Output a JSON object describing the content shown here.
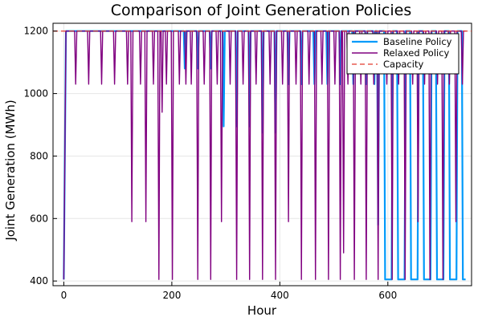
{
  "chart_data": {
    "type": "line",
    "title": "Comparison of Joint Generation Policies",
    "xlabel": "Hour",
    "ylabel": "Joint Generation (MWh)",
    "xlim": [
      -20,
      755
    ],
    "ylim": [
      385,
      1225
    ],
    "xticks": [
      0,
      200,
      400,
      600
    ],
    "yticks": [
      400,
      600,
      800,
      1000,
      1200
    ],
    "grid": true,
    "legend_position": "top-right",
    "capacity": 1200,
    "colors": {
      "baseline": "#009AFA",
      "relaxed": "#800080",
      "capacity": "#E23B2F"
    },
    "series": [
      {
        "name": "Baseline Policy",
        "points": [
          [
            0,
            405
          ],
          [
            4,
            1200
          ],
          [
            222,
            1200
          ],
          [
            224,
            1080
          ],
          [
            226,
            1200
          ],
          [
            246,
            1200
          ],
          [
            248,
            1080
          ],
          [
            250,
            1200
          ],
          [
            270,
            1200
          ],
          [
            272,
            1080
          ],
          [
            274,
            1200
          ],
          [
            294,
            1200
          ],
          [
            296,
            895
          ],
          [
            298,
            1200
          ],
          [
            318,
            1200
          ],
          [
            320,
            895
          ],
          [
            322,
            1200
          ],
          [
            342,
            1200
          ],
          [
            344,
            895
          ],
          [
            346,
            1200
          ],
          [
            366,
            1200
          ],
          [
            368,
            875
          ],
          [
            370,
            1200
          ],
          [
            390,
            1200
          ],
          [
            392,
            875
          ],
          [
            394,
            1200
          ],
          [
            414,
            1200
          ],
          [
            416,
            1030
          ],
          [
            418,
            1200
          ],
          [
            438,
            1200
          ],
          [
            440,
            1030
          ],
          [
            442,
            1200
          ],
          [
            462,
            1200
          ],
          [
            464,
            1030
          ],
          [
            466,
            1200
          ],
          [
            486,
            1200
          ],
          [
            488,
            1030
          ],
          [
            490,
            1200
          ],
          [
            510,
            1200
          ],
          [
            512,
            1030
          ],
          [
            514,
            1200
          ],
          [
            534,
            1200
          ],
          [
            536,
            1030
          ],
          [
            538,
            1200
          ],
          [
            558,
            1200
          ],
          [
            560,
            1030
          ],
          [
            562,
            1200
          ],
          [
            573,
            1200
          ],
          [
            575,
            1030
          ],
          [
            577,
            1200
          ],
          [
            580,
            1200
          ],
          [
            582,
            580
          ],
          [
            584,
            1200
          ],
          [
            593,
            1200
          ],
          [
            595,
            405
          ],
          [
            607,
            405
          ],
          [
            609,
            1200
          ],
          [
            617,
            1200
          ],
          [
            619,
            405
          ],
          [
            631,
            405
          ],
          [
            633,
            1200
          ],
          [
            641,
            1200
          ],
          [
            643,
            405
          ],
          [
            655,
            405
          ],
          [
            657,
            1200
          ],
          [
            665,
            1200
          ],
          [
            667,
            405
          ],
          [
            679,
            405
          ],
          [
            681,
            1200
          ],
          [
            689,
            1200
          ],
          [
            691,
            405
          ],
          [
            703,
            405
          ],
          [
            705,
            1200
          ],
          [
            713,
            1200
          ],
          [
            715,
            405
          ],
          [
            727,
            405
          ],
          [
            729,
            1200
          ],
          [
            737,
            1200
          ],
          [
            739,
            405
          ],
          [
            744,
            405
          ]
        ]
      },
      {
        "name": "Relaxed Policy",
        "points": [
          [
            0,
            405
          ],
          [
            4,
            1200
          ],
          [
            20,
            1200
          ],
          [
            22,
            1030
          ],
          [
            24,
            1200
          ],
          [
            44,
            1200
          ],
          [
            46,
            1030
          ],
          [
            48,
            1200
          ],
          [
            68,
            1200
          ],
          [
            70,
            1030
          ],
          [
            72,
            1200
          ],
          [
            92,
            1200
          ],
          [
            94,
            1030
          ],
          [
            96,
            1200
          ],
          [
            116,
            1200
          ],
          [
            118,
            1030
          ],
          [
            120,
            1200
          ],
          [
            124,
            1200
          ],
          [
            126,
            590
          ],
          [
            128,
            1200
          ],
          [
            140,
            1200
          ],
          [
            142,
            1030
          ],
          [
            144,
            1200
          ],
          [
            150,
            1200
          ],
          [
            152,
            590
          ],
          [
            154,
            1200
          ],
          [
            164,
            1200
          ],
          [
            166,
            1030
          ],
          [
            168,
            1200
          ],
          [
            174,
            1200
          ],
          [
            176,
            405
          ],
          [
            178,
            1200
          ],
          [
            180,
            1200
          ],
          [
            182,
            940
          ],
          [
            184,
            1200
          ],
          [
            188,
            1200
          ],
          [
            190,
            1030
          ],
          [
            192,
            1200
          ],
          [
            199,
            1200
          ],
          [
            201,
            405
          ],
          [
            203,
            1200
          ],
          [
            212,
            1200
          ],
          [
            214,
            1030
          ],
          [
            216,
            1200
          ],
          [
            224,
            1200
          ],
          [
            226,
            1030
          ],
          [
            228,
            1200
          ],
          [
            234,
            1200
          ],
          [
            236,
            1030
          ],
          [
            238,
            1200
          ],
          [
            246,
            1200
          ],
          [
            248,
            405
          ],
          [
            250,
            1200
          ],
          [
            258,
            1200
          ],
          [
            260,
            1030
          ],
          [
            262,
            1200
          ],
          [
            270,
            1200
          ],
          [
            272,
            405
          ],
          [
            274,
            1200
          ],
          [
            282,
            1200
          ],
          [
            284,
            1030
          ],
          [
            286,
            1200
          ],
          [
            290,
            1200
          ],
          [
            292,
            590
          ],
          [
            294,
            1200
          ],
          [
            306,
            1200
          ],
          [
            308,
            1030
          ],
          [
            310,
            1200
          ],
          [
            318,
            1200
          ],
          [
            320,
            405
          ],
          [
            322,
            1200
          ],
          [
            330,
            1200
          ],
          [
            332,
            1030
          ],
          [
            334,
            1200
          ],
          [
            342,
            1200
          ],
          [
            344,
            405
          ],
          [
            346,
            1200
          ],
          [
            354,
            1200
          ],
          [
            356,
            1030
          ],
          [
            358,
            1200
          ],
          [
            366,
            1200
          ],
          [
            368,
            405
          ],
          [
            370,
            1200
          ],
          [
            380,
            1200
          ],
          [
            382,
            1030
          ],
          [
            384,
            1200
          ],
          [
            390,
            1200
          ],
          [
            392,
            405
          ],
          [
            394,
            1200
          ],
          [
            403,
            1200
          ],
          [
            405,
            1030
          ],
          [
            407,
            1200
          ],
          [
            414,
            1200
          ],
          [
            416,
            590
          ],
          [
            418,
            1200
          ],
          [
            428,
            1200
          ],
          [
            430,
            1030
          ],
          [
            432,
            1200
          ],
          [
            438,
            1200
          ],
          [
            440,
            405
          ],
          [
            442,
            1200
          ],
          [
            452,
            1200
          ],
          [
            454,
            1030
          ],
          [
            456,
            1200
          ],
          [
            464,
            1200
          ],
          [
            466,
            405
          ],
          [
            468,
            1200
          ],
          [
            476,
            1200
          ],
          [
            478,
            1030
          ],
          [
            480,
            1200
          ],
          [
            488,
            1200
          ],
          [
            490,
            405
          ],
          [
            492,
            1200
          ],
          [
            500,
            1200
          ],
          [
            502,
            1030
          ],
          [
            504,
            1200
          ],
          [
            510,
            1200
          ],
          [
            512,
            405
          ],
          [
            514,
            1200
          ],
          [
            516,
            1200
          ],
          [
            518,
            490
          ],
          [
            520,
            1200
          ],
          [
            524,
            1200
          ],
          [
            526,
            1030
          ],
          [
            528,
            1200
          ],
          [
            536,
            1200
          ],
          [
            538,
            405
          ],
          [
            540,
            1200
          ],
          [
            548,
            1200
          ],
          [
            550,
            1030
          ],
          [
            552,
            1200
          ],
          [
            558,
            1200
          ],
          [
            560,
            405
          ],
          [
            562,
            1200
          ],
          [
            572,
            1200
          ],
          [
            574,
            1030
          ],
          [
            576,
            1200
          ],
          [
            580,
            1200
          ],
          [
            582,
            405
          ],
          [
            584,
            1200
          ],
          [
            596,
            1200
          ],
          [
            598,
            1030
          ],
          [
            600,
            1200
          ],
          [
            606,
            1200
          ],
          [
            608,
            405
          ],
          [
            610,
            1200
          ],
          [
            618,
            1200
          ],
          [
            620,
            1030
          ],
          [
            622,
            1200
          ],
          [
            630,
            1200
          ],
          [
            632,
            405
          ],
          [
            634,
            1200
          ],
          [
            644,
            1200
          ],
          [
            646,
            1030
          ],
          [
            648,
            1200
          ],
          [
            654,
            1200
          ],
          [
            656,
            590
          ],
          [
            658,
            1200
          ],
          [
            666,
            1200
          ],
          [
            668,
            1030
          ],
          [
            670,
            1200
          ],
          [
            676,
            1200
          ],
          [
            678,
            405
          ],
          [
            680,
            1200
          ],
          [
            690,
            1200
          ],
          [
            692,
            1030
          ],
          [
            694,
            1200
          ],
          [
            700,
            1200
          ],
          [
            702,
            405
          ],
          [
            704,
            1200
          ],
          [
            712,
            1200
          ],
          [
            714,
            1030
          ],
          [
            716,
            1200
          ],
          [
            724,
            1200
          ],
          [
            726,
            590
          ],
          [
            728,
            1200
          ],
          [
            736,
            1200
          ],
          [
            738,
            1030
          ],
          [
            740,
            1200
          ],
          [
            744,
            1200
          ]
        ]
      }
    ],
    "reference_lines": [
      {
        "name": "Capacity",
        "y": 1200
      }
    ]
  }
}
